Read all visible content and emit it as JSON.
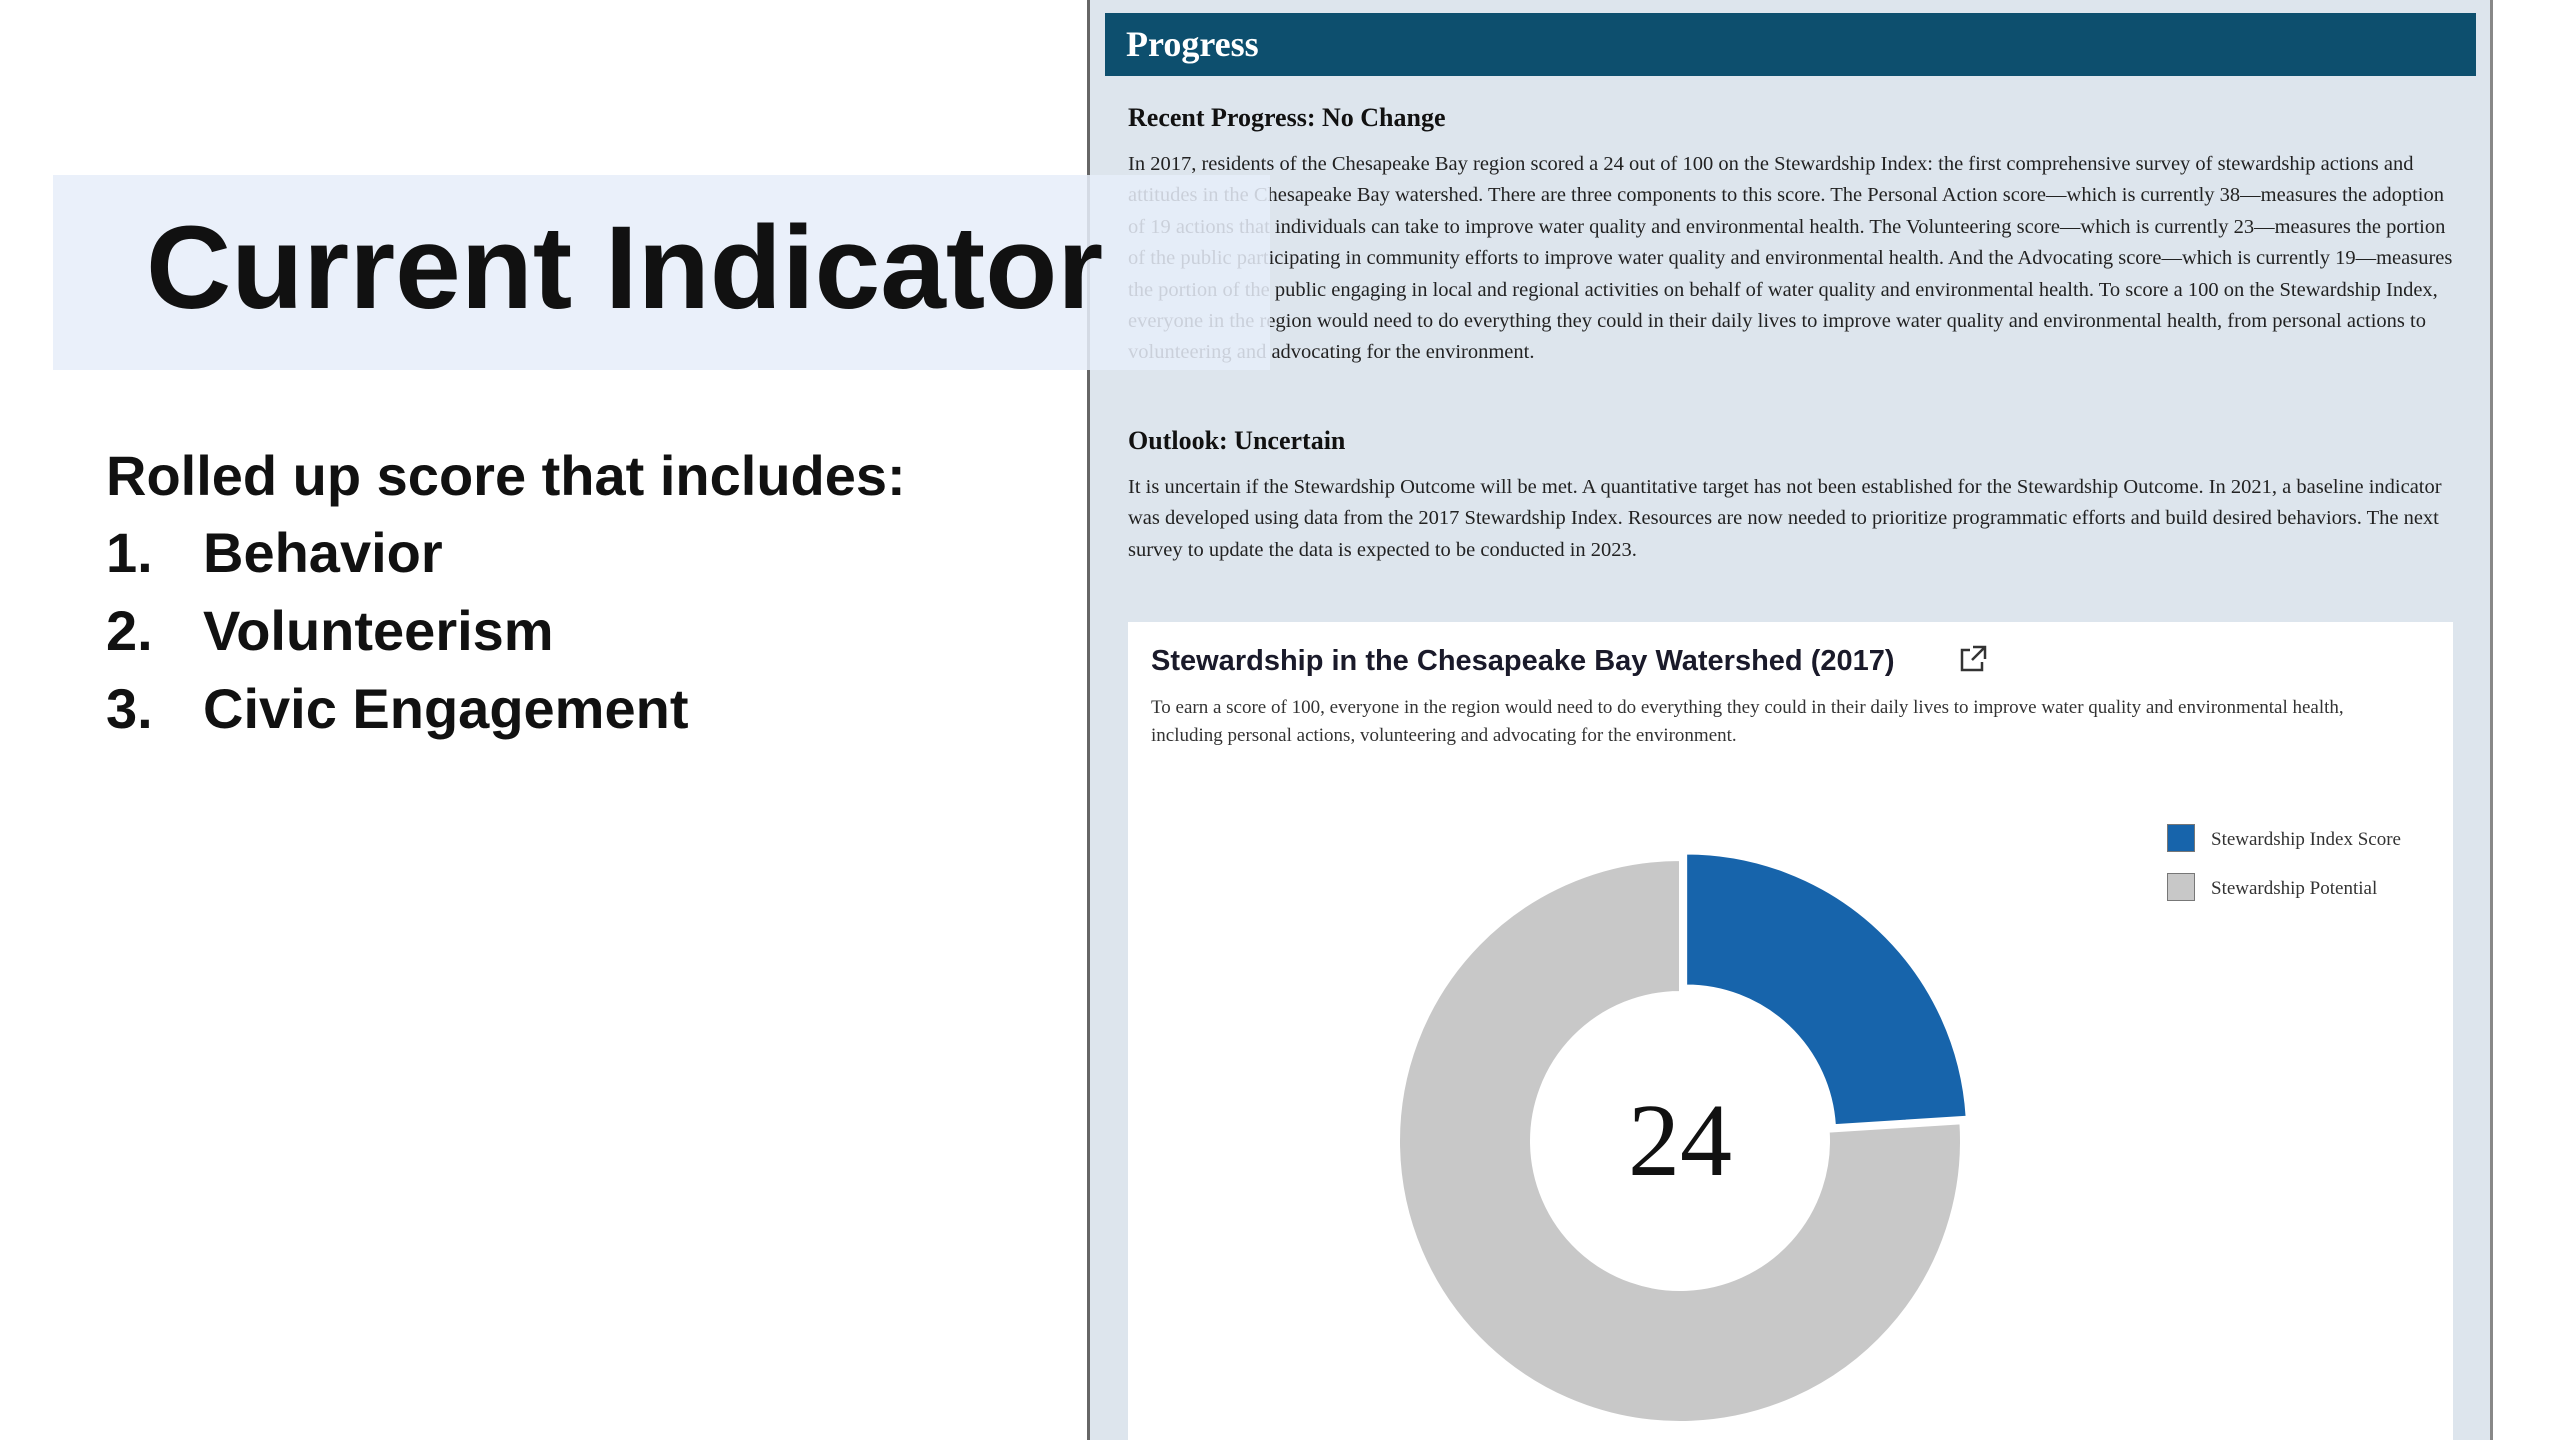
{
  "slide": {
    "title": "Current Indicator",
    "intro": "Rolled up score that includes:",
    "items": [
      {
        "number": "1.",
        "text": "Behavior"
      },
      {
        "number": "2.",
        "text": "Volunteerism"
      },
      {
        "number": "3.",
        "text": "Civic Engagement"
      }
    ]
  },
  "panel": {
    "header": "Progress",
    "sections": [
      {
        "heading": "Recent Progress: No Change",
        "text": "In 2017, residents of the Chesapeake Bay region scored a 24 out of 100 on the Stewardship Index: the first comprehensive survey of stewardship actions and attitudes in the Chesapeake Bay watershed. There are three components to this score. The Personal Action score—which is currently 38—measures the adoption of 19 actions that individuals can take to improve water quality and environmental health. The Volunteering score—which is currently 23—measures the portion of the public participating in community efforts to improve water quality and environmental health. And the Advocating score—which is currently 19—measures the portion of the public engaging in local and regional activities on behalf of water quality and environmental health. To score a 100 on the Stewardship Index, everyone in the region would need to do everything they could in their daily lives to improve water quality and environmental health, from personal actions to volunteering and advocating for the environment."
      },
      {
        "heading": "Outlook: Uncertain",
        "text": "It is uncertain if the Stewardship Outcome will be met. A quantitative target has not been established for the Stewardship Outcome. In 2021, a baseline indicator was developed using data from the 2017 Stewardship Index. Resources are now needed to prioritize programmatic efforts and build desired behaviors. The next survey to update the data is expected to be conducted in 2023."
      }
    ]
  },
  "chart_data": {
    "type": "donut",
    "title": "Stewardship in the Chesapeake Bay Watershed (2017)",
    "subtitle": "To earn a score of 100, everyone in the region would need to do everything they could in their daily lives to improve water quality and environmental health, including personal actions, volunteering and advocating for the environment.",
    "categories": [
      "Stewardship Index Score",
      "Stewardship Potential"
    ],
    "values": [
      24,
      76
    ],
    "colors": [
      "#1764ab",
      "#c8c8c8"
    ],
    "legend": "right"
  }
}
